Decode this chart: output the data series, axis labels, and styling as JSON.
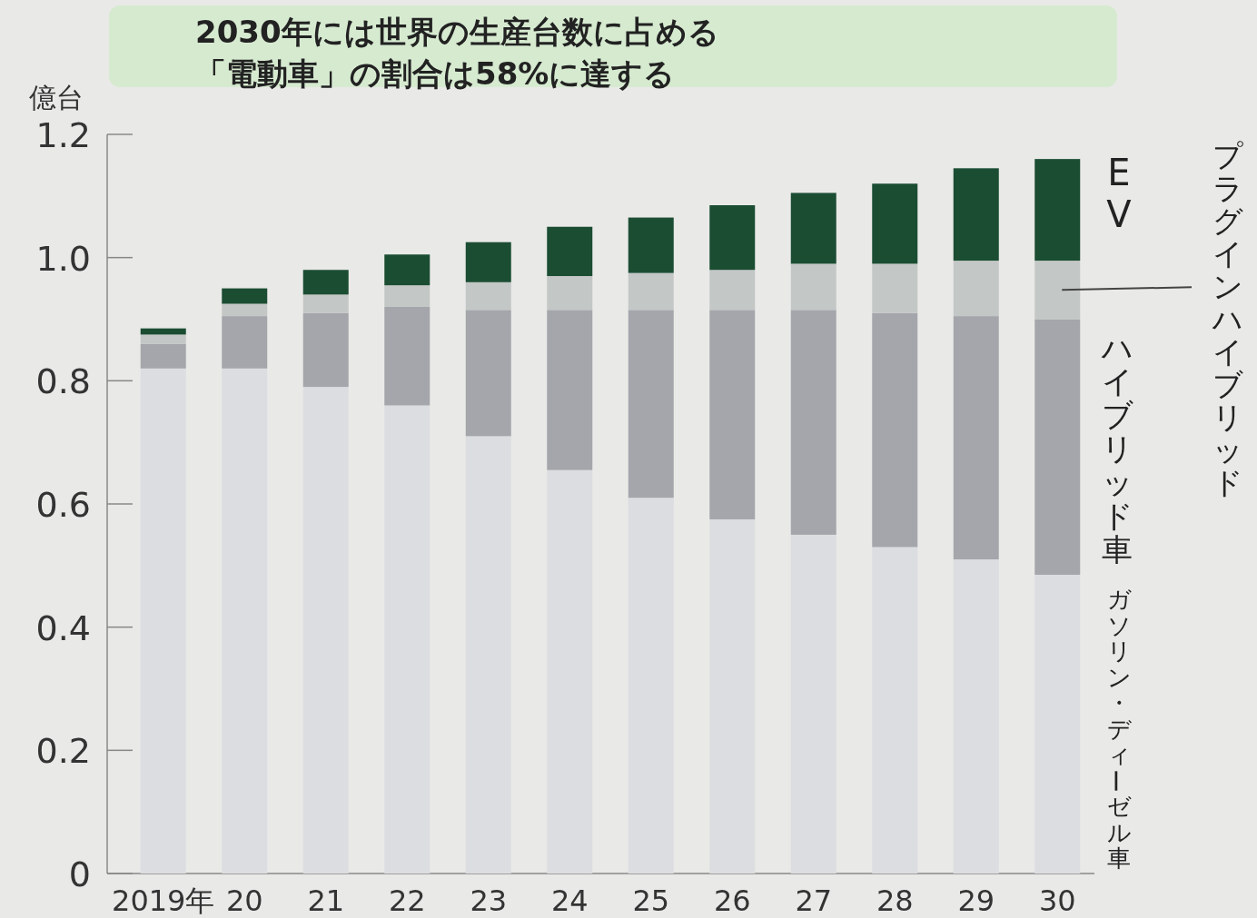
{
  "chart_data": {
    "type": "bar",
    "stacked": true,
    "title": "2030年には世界の生産台数に占める「電動車」の割合は58%に達する",
    "ylabel": "億台",
    "categories": [
      "2019年",
      "20",
      "21",
      "22",
      "23",
      "24",
      "25",
      "26",
      "27",
      "28",
      "29",
      "30"
    ],
    "ylim": [
      0,
      1.2
    ],
    "yticks": [
      0,
      0.2,
      0.4,
      0.6,
      0.8,
      {
        "value": 1.0,
        "label": "1.0"
      },
      1.2
    ],
    "series": [
      {
        "name": "ガソリン・ディーゼル車",
        "color": "#dcdde0",
        "values": [
          0.82,
          0.82,
          0.79,
          0.76,
          0.71,
          0.655,
          0.61,
          0.575,
          0.55,
          0.53,
          0.51,
          0.485
        ]
      },
      {
        "name": "ハイブリッド車",
        "color": "#a4a6ab",
        "values": [
          0.04,
          0.085,
          0.12,
          0.16,
          0.205,
          0.26,
          0.305,
          0.34,
          0.365,
          0.38,
          0.395,
          0.415
        ]
      },
      {
        "name": "プラグインハイブリッド",
        "color": "#c3c7c6",
        "values": [
          0.015,
          0.02,
          0.03,
          0.035,
          0.045,
          0.055,
          0.06,
          0.065,
          0.075,
          0.08,
          0.09,
          0.095
        ]
      },
      {
        "name": "EV",
        "color": "#1b4d33",
        "values": [
          0.01,
          0.025,
          0.04,
          0.05,
          0.065,
          0.08,
          0.09,
          0.105,
          0.115,
          0.13,
          0.15,
          0.165
        ]
      }
    ]
  }
}
